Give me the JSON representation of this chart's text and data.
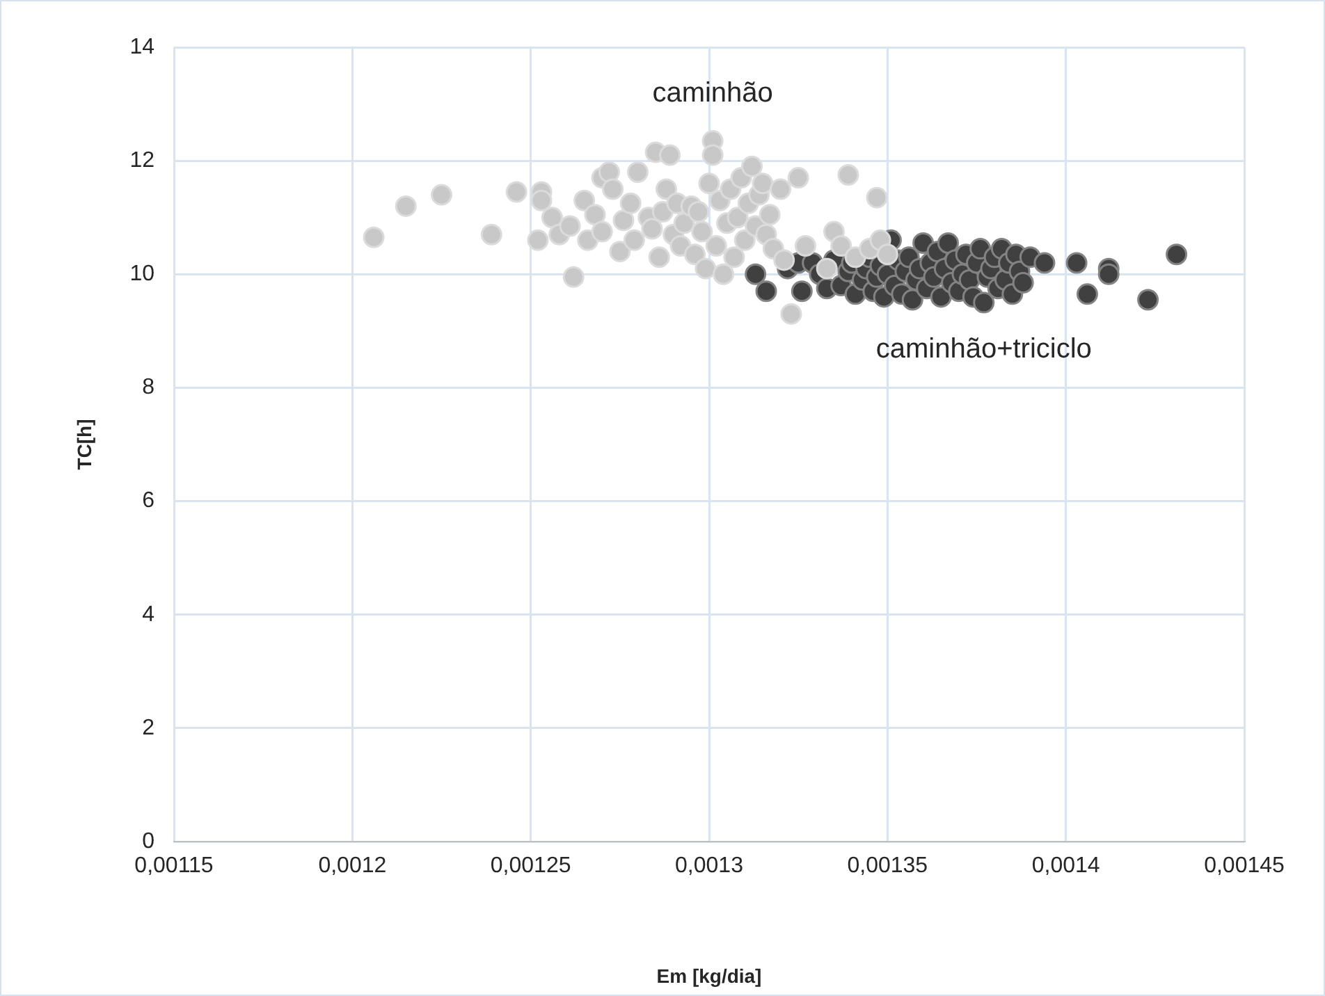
{
  "chart_data": {
    "type": "scatter",
    "xlabel": "Em [kg/dia]",
    "ylabel": "TC[h]",
    "xlim": [
      0.00115,
      0.00145
    ],
    "xticks": [
      {
        "value": 0.00115,
        "label": "0,00115"
      },
      {
        "value": 0.0012,
        "label": "0,0012"
      },
      {
        "value": 0.00125,
        "label": "0,00125"
      },
      {
        "value": 0.0013,
        "label": "0,0013"
      },
      {
        "value": 0.00135,
        "label": "0,00135"
      },
      {
        "value": 0.0014,
        "label": "0,0014"
      },
      {
        "value": 0.00145,
        "label": "0,00145"
      }
    ],
    "ylim": [
      0,
      14
    ],
    "yticks": [
      0,
      2,
      4,
      6,
      8,
      10,
      12,
      14
    ],
    "grid": true,
    "legend": false,
    "marker": "circle",
    "series": [
      {
        "name": "caminhão",
        "color": "#c8c8c8",
        "x": [
          0.001206,
          0.001215,
          0.001225,
          0.001239,
          0.001246,
          0.001253,
          0.001253,
          0.001252,
          0.001256,
          0.001258,
          0.001261,
          0.001262,
          0.001265,
          0.001266,
          0.001268,
          0.00127,
          0.00127,
          0.001272,
          0.001273,
          0.001275,
          0.001276,
          0.001278,
          0.001279,
          0.00128,
          0.001283,
          0.001284,
          0.001285,
          0.001286,
          0.001287,
          0.001288,
          0.001289,
          0.00129,
          0.001291,
          0.001292,
          0.001293,
          0.001295,
          0.001296,
          0.001297,
          0.001298,
          0.001299,
          0.0013,
          0.001301,
          0.001301,
          0.001302,
          0.001303,
          0.001304,
          0.001305,
          0.001306,
          0.001307,
          0.001308,
          0.001309,
          0.00131,
          0.001311,
          0.001312,
          0.001313,
          0.001314,
          0.001315,
          0.001316,
          0.001317,
          0.001318,
          0.00132,
          0.001321,
          0.001323,
          0.001325,
          0.001327,
          0.001333,
          0.001335,
          0.001337,
          0.001339,
          0.001341,
          0.001345,
          0.001347,
          0.001348,
          0.00135
        ],
        "values": [
          10.65,
          11.2,
          11.4,
          10.7,
          11.45,
          11.45,
          11.3,
          10.6,
          11.0,
          10.7,
          10.85,
          9.95,
          11.3,
          10.6,
          11.05,
          11.7,
          10.75,
          11.8,
          11.5,
          10.4,
          10.95,
          11.25,
          10.6,
          11.8,
          11.0,
          10.8,
          12.15,
          10.3,
          11.1,
          11.5,
          12.1,
          10.7,
          11.25,
          10.5,
          10.9,
          11.2,
          10.35,
          11.1,
          10.75,
          10.1,
          11.6,
          12.35,
          12.1,
          10.5,
          11.3,
          10.0,
          10.9,
          11.5,
          10.3,
          11.0,
          11.7,
          10.6,
          11.25,
          11.9,
          10.85,
          11.4,
          11.6,
          10.7,
          11.05,
          10.45,
          11.5,
          10.25,
          9.3,
          11.7,
          10.5,
          10.1,
          10.75,
          10.5,
          11.75,
          10.3,
          10.45,
          11.35,
          10.6,
          10.35
        ]
      },
      {
        "name": "caminhão+triciclo",
        "color": "#404040",
        "x": [
          0.001313,
          0.001316,
          0.001322,
          0.001325,
          0.001326,
          0.001329,
          0.001331,
          0.001333,
          0.001335,
          0.001337,
          0.001339,
          0.00134,
          0.001341,
          0.001343,
          0.001344,
          0.001345,
          0.001346,
          0.001347,
          0.001348,
          0.001349,
          0.00135,
          0.001351,
          0.001352,
          0.001353,
          0.001354,
          0.001355,
          0.001356,
          0.001357,
          0.001358,
          0.001359,
          0.00136,
          0.001361,
          0.001362,
          0.001363,
          0.001364,
          0.001365,
          0.001366,
          0.001367,
          0.001368,
          0.001369,
          0.00137,
          0.001371,
          0.001372,
          0.001373,
          0.001374,
          0.001375,
          0.001376,
          0.001377,
          0.001378,
          0.001379,
          0.00138,
          0.001381,
          0.001382,
          0.001383,
          0.001384,
          0.001385,
          0.001386,
          0.001387,
          0.001388,
          0.00139,
          0.001394,
          0.001403,
          0.001406,
          0.001412,
          0.001412,
          0.001423,
          0.001431
        ],
        "values": [
          10.0,
          9.7,
          10.1,
          10.2,
          9.7,
          10.2,
          10.0,
          9.75,
          10.25,
          9.8,
          10.05,
          10.2,
          9.65,
          9.9,
          10.1,
          10.3,
          9.7,
          9.95,
          10.15,
          9.6,
          10.0,
          10.6,
          9.8,
          10.25,
          9.65,
          10.05,
          10.3,
          9.55,
          9.9,
          10.1,
          10.55,
          9.75,
          10.2,
          9.95,
          10.4,
          9.6,
          10.1,
          10.55,
          9.85,
          10.25,
          9.7,
          10.0,
          10.35,
          9.9,
          9.6,
          10.2,
          10.45,
          9.5,
          9.95,
          10.1,
          10.3,
          9.75,
          10.45,
          9.9,
          10.2,
          9.65,
          10.35,
          10.05,
          9.85,
          10.3,
          10.2,
          10.2,
          9.65,
          10.1,
          10.0,
          9.55,
          10.35
        ]
      }
    ]
  }
}
